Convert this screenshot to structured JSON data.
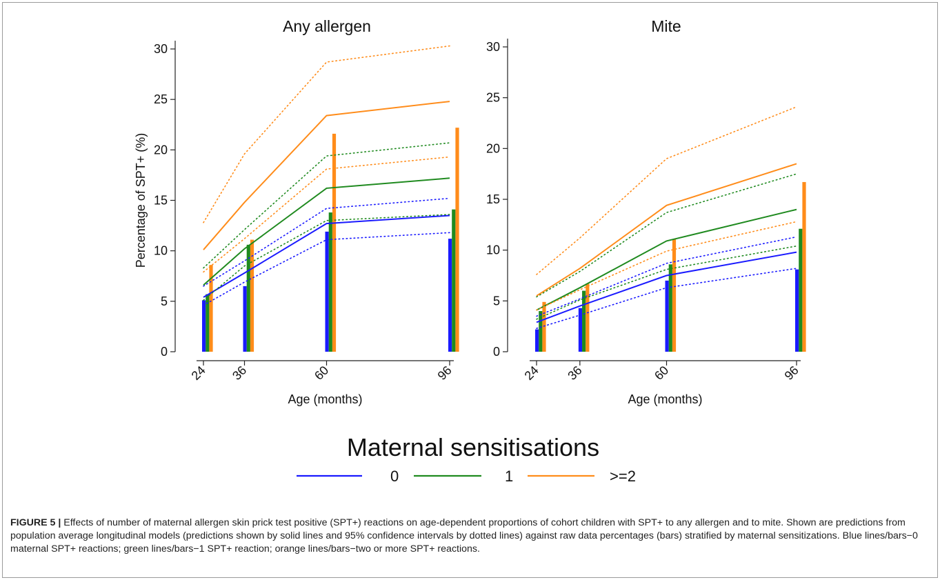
{
  "legend": {
    "title": "Maternal sensitisations",
    "items": [
      {
        "label": "0",
        "color": "#1a1aff"
      },
      {
        "label": "1",
        "color": "#1f8a1f"
      },
      {
        "label": ">=2",
        "color": "#ff8c1a"
      }
    ]
  },
  "caption": {
    "label": "FIGURE 5 |",
    "text": " Effects of number of maternal allergen skin prick test positive (SPT+) reactions on age-dependent proportions of cohort children with SPT+ to any allergen and to mite. Shown are predictions from population average longitudinal models (predictions shown by solid lines and 95% confidence intervals by dotted lines) against raw data percentages (bars) stratified by maternal sensitizations. Blue lines/bars−0 maternal SPT+ reactions; green lines/bars−1 SPT+ reaction; orange lines/bars−two or more SPT+ reactions."
  },
  "chart_data": [
    {
      "type": "bar+line",
      "title": "Any allergen",
      "xlabel": "Age (months)",
      "ylabel": "Percentage of SPT+ (%)",
      "x": [
        24,
        36,
        60,
        96
      ],
      "xlim": [
        24,
        96
      ],
      "ylim": [
        0,
        30
      ],
      "yticks": [
        0,
        5,
        10,
        15,
        20,
        25,
        30
      ],
      "bars": [
        {
          "group": "0",
          "color": "#1a1aff",
          "values": [
            5.1,
            6.5,
            11.9,
            11.2
          ]
        },
        {
          "group": "1",
          "color": "#1f8a1f",
          "values": [
            5.7,
            10.6,
            13.8,
            14.1
          ]
        },
        {
          "group": ">=2",
          "color": "#ff8c1a",
          "values": [
            8.6,
            11.1,
            21.6,
            22.2
          ]
        }
      ],
      "lines": [
        {
          "group": "0",
          "color": "#1a1aff",
          "pred": [
            5.4,
            7.8,
            12.7,
            13.5
          ],
          "lower": [
            4.6,
            6.9,
            11.1,
            11.8
          ],
          "upper": [
            6.5,
            9.0,
            14.2,
            15.2
          ]
        },
        {
          "group": "1",
          "color": "#1f8a1f",
          "pred": [
            6.6,
            10.2,
            16.2,
            17.2
          ],
          "lower": [
            5.1,
            8.5,
            13.0,
            13.6
          ],
          "upper": [
            8.3,
            12.1,
            19.4,
            20.7
          ]
        },
        {
          "group": ">=2",
          "color": "#ff8c1a",
          "pred": [
            10.1,
            14.8,
            23.4,
            24.8
          ],
          "lower": [
            7.9,
            11.2,
            18.1,
            19.3
          ],
          "upper": [
            12.8,
            19.6,
            28.7,
            30.3
          ]
        }
      ]
    },
    {
      "type": "bar+line",
      "title": "Mite",
      "xlabel": "Age (months)",
      "ylabel": "",
      "x": [
        24,
        36,
        60,
        96
      ],
      "xlim": [
        24,
        96
      ],
      "ylim": [
        0,
        30
      ],
      "yticks": [
        0,
        5,
        10,
        15,
        20,
        25,
        30
      ],
      "bars": [
        {
          "group": "0",
          "color": "#1a1aff",
          "values": [
            2.2,
            4.3,
            7.0,
            8.1
          ]
        },
        {
          "group": "1",
          "color": "#1f8a1f",
          "values": [
            4.0,
            6.0,
            8.6,
            12.1
          ]
        },
        {
          "group": ">=2",
          "color": "#ff8c1a",
          "values": [
            4.9,
            6.7,
            11.1,
            16.7
          ]
        }
      ],
      "lines": [
        {
          "group": "0",
          "color": "#1a1aff",
          "pred": [
            2.9,
            4.5,
            7.5,
            9.8
          ],
          "lower": [
            2.3,
            3.6,
            6.3,
            8.2
          ],
          "upper": [
            3.5,
            5.2,
            8.7,
            11.3
          ]
        },
        {
          "group": "1",
          "color": "#1f8a1f",
          "pred": [
            4.1,
            6.3,
            10.9,
            14.0
          ],
          "lower": [
            3.2,
            5.1,
            8.1,
            10.4
          ],
          "upper": [
            5.4,
            7.9,
            13.7,
            17.5
          ]
        },
        {
          "group": ">=2",
          "color": "#ff8c1a",
          "pred": [
            5.5,
            8.2,
            14.4,
            18.5
          ],
          "lower": [
            4.1,
            6.1,
            9.9,
            12.8
          ],
          "upper": [
            7.6,
            11.2,
            19.0,
            24.1
          ]
        }
      ]
    }
  ]
}
